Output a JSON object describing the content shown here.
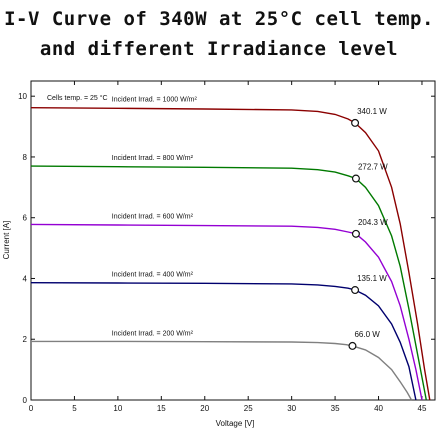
{
  "title_line1": "I-V Curve of 340W at 25°C cell temp.",
  "title_line2": "and different Irradiance level",
  "chart_data": {
    "type": "line",
    "xlabel": "Voltage [V]",
    "ylabel": "Current [A]",
    "xlim": [
      0,
      46.5
    ],
    "ylim": [
      0,
      10.5
    ],
    "x_ticks": [
      0,
      5,
      10,
      15,
      20,
      25,
      30,
      35,
      40,
      45
    ],
    "y_ticks": [
      0,
      2,
      4,
      6,
      8,
      10
    ],
    "grid": false,
    "legend": "none",
    "note": "Cells temp. = 25 °C",
    "series": [
      {
        "name": "Incident Irrad. = 1000 W/m²",
        "color": "#8b0000",
        "mpp_label": "340.1 W",
        "mpp": [
          37.3,
          9.12
        ],
        "points": [
          [
            0,
            9.62
          ],
          [
            10,
            9.6
          ],
          [
            20,
            9.58
          ],
          [
            30,
            9.55
          ],
          [
            33,
            9.5
          ],
          [
            35,
            9.4
          ],
          [
            36.5,
            9.25
          ],
          [
            37.3,
            9.12
          ],
          [
            38.5,
            8.8
          ],
          [
            40,
            8.2
          ],
          [
            41.5,
            7.0
          ],
          [
            42.5,
            5.8
          ],
          [
            43.5,
            4.2
          ],
          [
            44.5,
            2.5
          ],
          [
            45.3,
            1.0
          ],
          [
            45.9,
            0
          ]
        ]
      },
      {
        "name": "Incident Irrad. = 800 W/m²",
        "color": "#007a00",
        "mpp_label": "272.7 W",
        "mpp": [
          37.4,
          7.29
        ],
        "points": [
          [
            0,
            7.7
          ],
          [
            10,
            7.68
          ],
          [
            20,
            7.66
          ],
          [
            30,
            7.63
          ],
          [
            33,
            7.58
          ],
          [
            35,
            7.5
          ],
          [
            36.5,
            7.38
          ],
          [
            37.4,
            7.29
          ],
          [
            38.5,
            7.0
          ],
          [
            40,
            6.4
          ],
          [
            41.5,
            5.4
          ],
          [
            42.5,
            4.4
          ],
          [
            43.5,
            3.0
          ],
          [
            44.5,
            1.5
          ],
          [
            45.5,
            0
          ]
        ]
      },
      {
        "name": "Incident Irrad. = 600 W/m²",
        "color": "#9400d3",
        "mpp_label": "204.3 W",
        "mpp": [
          37.4,
          5.47
        ],
        "points": [
          [
            0,
            5.78
          ],
          [
            10,
            5.76
          ],
          [
            20,
            5.74
          ],
          [
            30,
            5.72
          ],
          [
            33,
            5.68
          ],
          [
            35,
            5.62
          ],
          [
            36.5,
            5.53
          ],
          [
            37.4,
            5.47
          ],
          [
            38.5,
            5.2
          ],
          [
            40,
            4.7
          ],
          [
            41.5,
            3.9
          ],
          [
            42.5,
            3.1
          ],
          [
            43.5,
            2.0
          ],
          [
            44.3,
            1.0
          ],
          [
            45.0,
            0
          ]
        ]
      },
      {
        "name": "Incident Irrad. = 400 W/m²",
        "color": "#00006e",
        "mpp_label": "135.1 W",
        "mpp": [
          37.3,
          3.62
        ],
        "points": [
          [
            0,
            3.86
          ],
          [
            10,
            3.85
          ],
          [
            20,
            3.84
          ],
          [
            30,
            3.82
          ],
          [
            33,
            3.79
          ],
          [
            35,
            3.74
          ],
          [
            36.5,
            3.68
          ],
          [
            37.3,
            3.62
          ],
          [
            38.5,
            3.45
          ],
          [
            40,
            3.1
          ],
          [
            41.5,
            2.5
          ],
          [
            42.5,
            1.9
          ],
          [
            43.5,
            1.1
          ],
          [
            44.3,
            0
          ]
        ]
      },
      {
        "name": "Incident Irrad. = 200 W/m²",
        "color": "#808080",
        "mpp_label": "66.0 W",
        "mpp": [
          37.0,
          1.78
        ],
        "points": [
          [
            0,
            1.93
          ],
          [
            10,
            1.93
          ],
          [
            20,
            1.92
          ],
          [
            30,
            1.91
          ],
          [
            33,
            1.89
          ],
          [
            35,
            1.86
          ],
          [
            36.3,
            1.82
          ],
          [
            37.0,
            1.78
          ],
          [
            38.5,
            1.65
          ],
          [
            40,
            1.4
          ],
          [
            41.5,
            1.0
          ],
          [
            42.5,
            0.6
          ],
          [
            43.3,
            0.25
          ],
          [
            43.8,
            0
          ]
        ]
      }
    ]
  }
}
